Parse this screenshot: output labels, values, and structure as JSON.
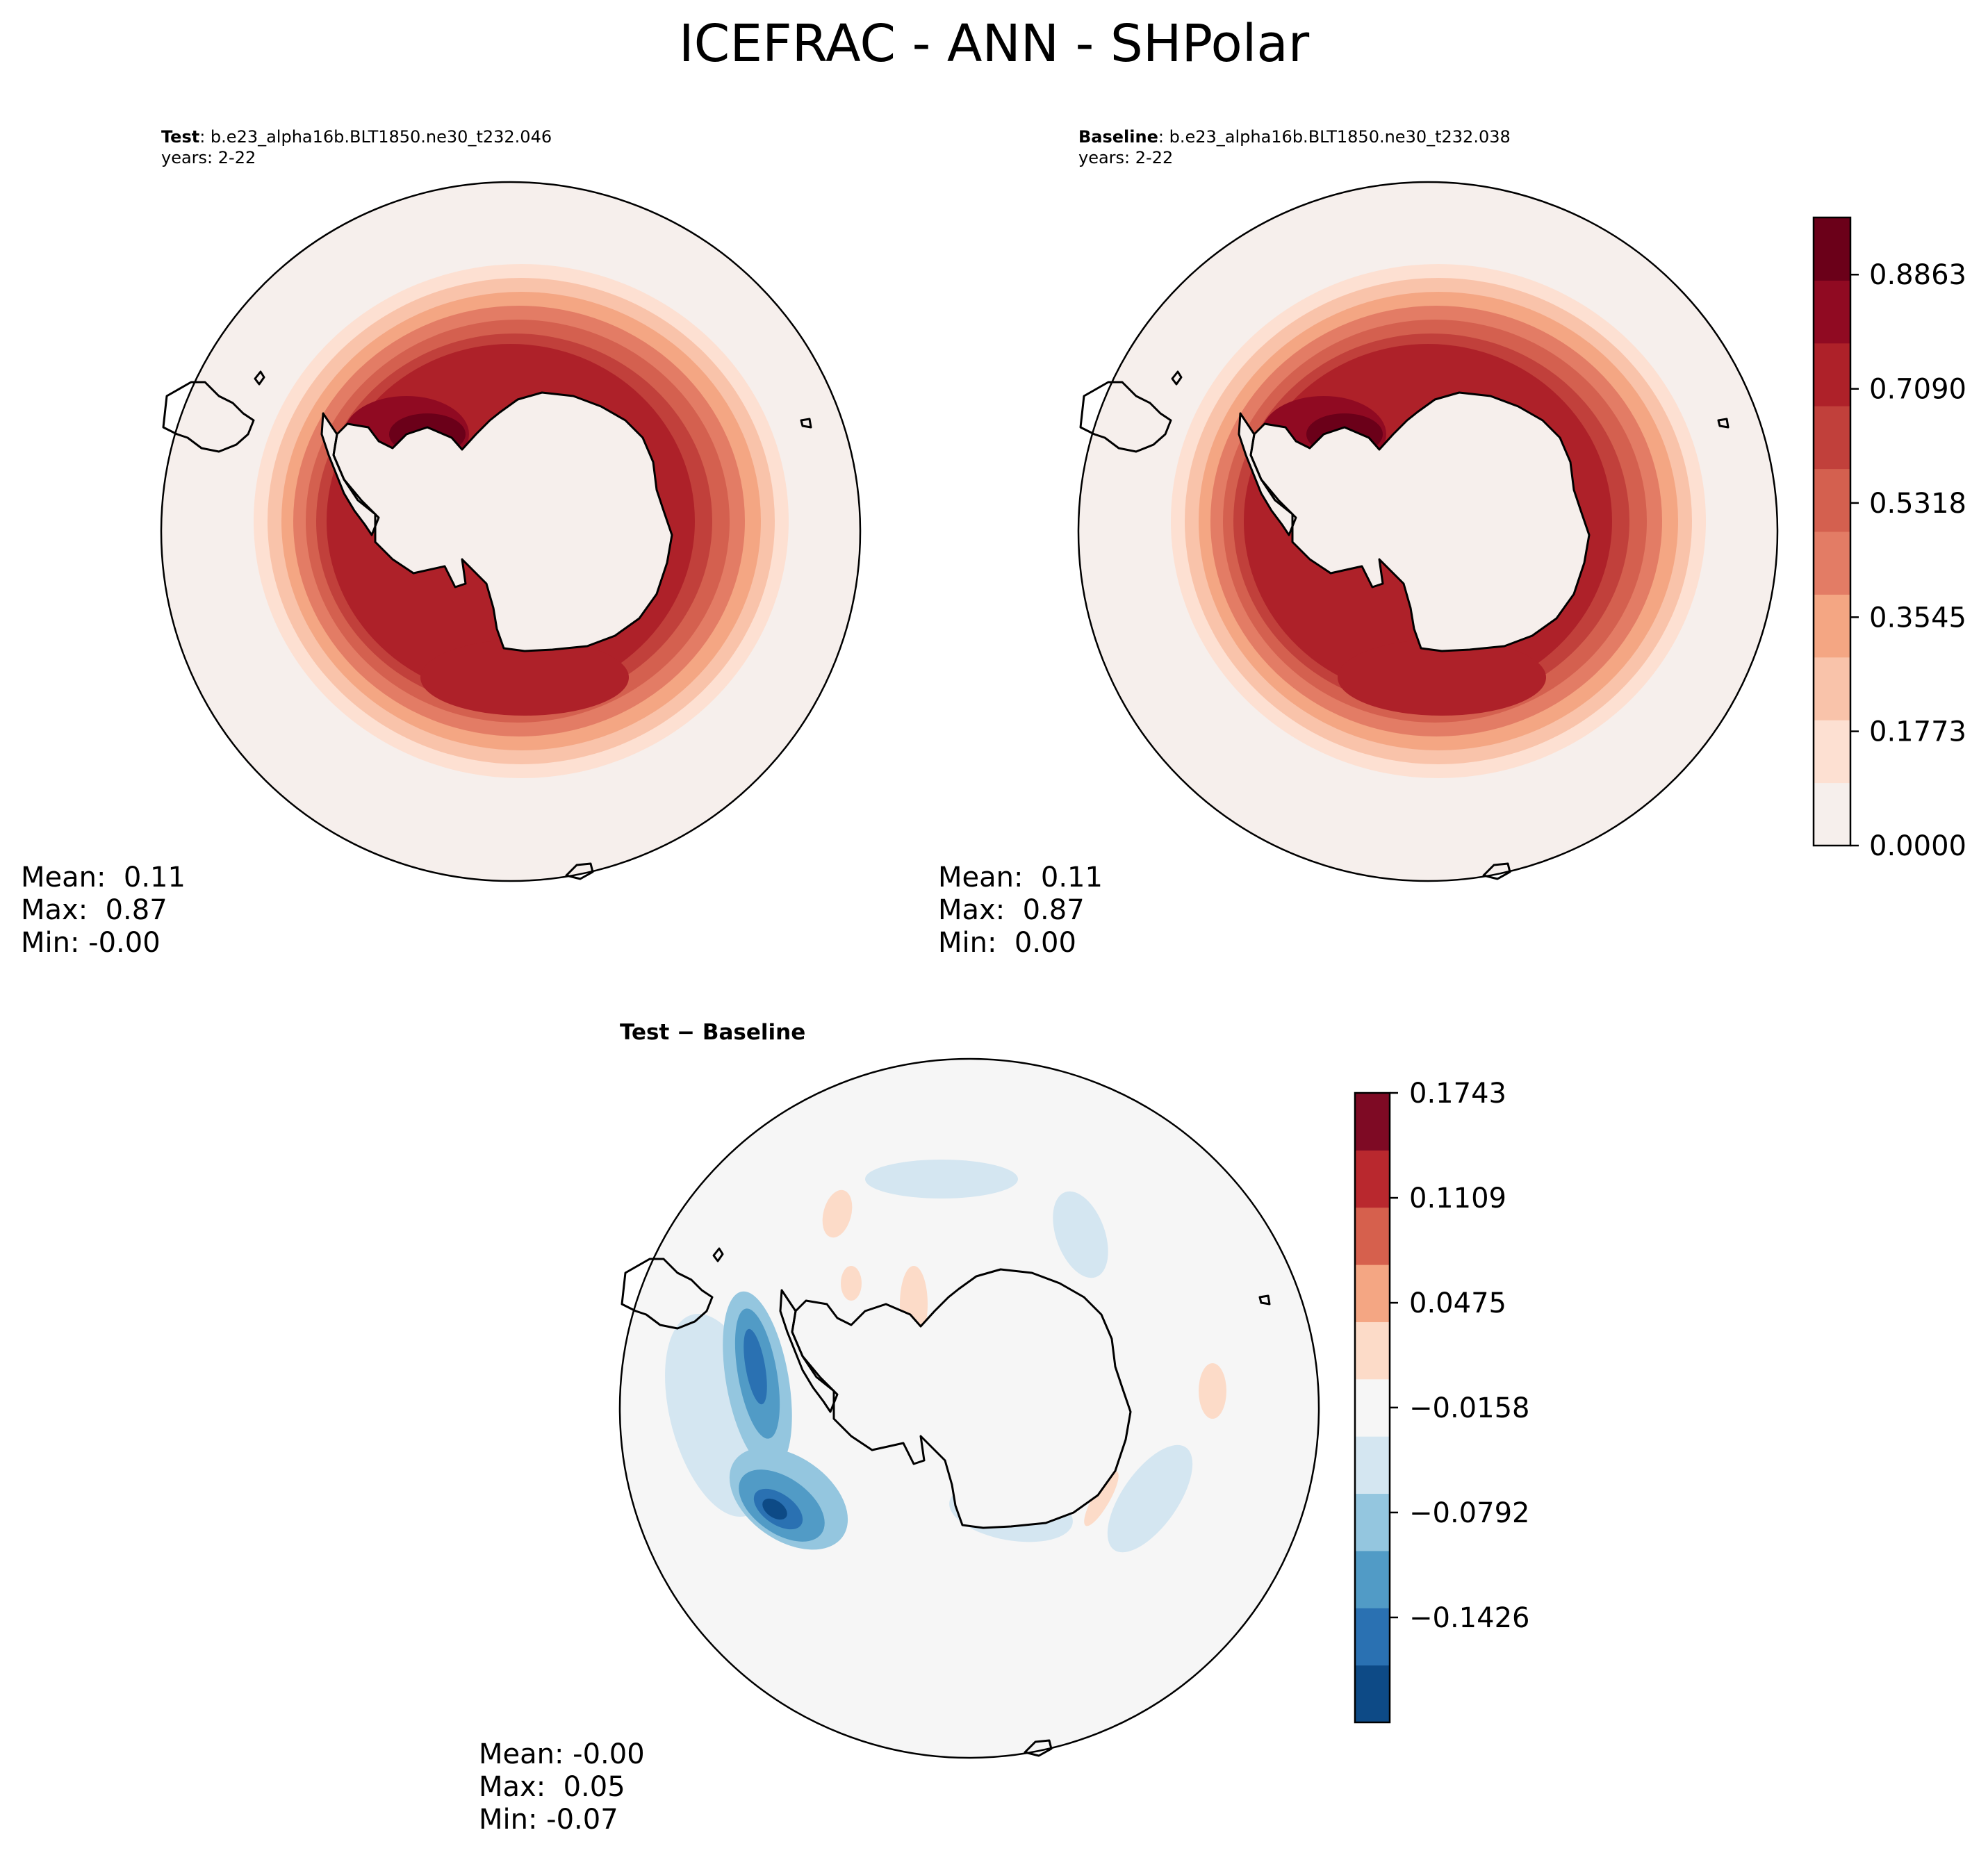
{
  "figure": {
    "suptitle": "ICEFRAC - ANN - SHPolar"
  },
  "panels": {
    "test": {
      "title_bold": "Test",
      "title_rest": ": b.e23_alpha16b.BLT1850.ne30_t232.046",
      "years": "years: 2-22",
      "stats": {
        "mean": "Mean:  0.11",
        "max": "Max:  0.87",
        "min": "Min: -0.00"
      }
    },
    "baseline": {
      "title_bold": "Baseline",
      "title_rest": ": b.e23_alpha16b.BLT1850.ne30_t232.038",
      "years": "years: 2-22",
      "stats": {
        "mean": "Mean:  0.11",
        "max": "Max:  0.87",
        "min": "Min:  0.00"
      }
    },
    "diff": {
      "title": "Test − Baseline",
      "stats": {
        "mean": "Mean: -0.00",
        "max": "Max:  0.05",
        "min": "Min: -0.07"
      }
    }
  },
  "colorbars": {
    "main": {
      "tick_labels": [
        "0.0000",
        "0.1773",
        "0.3545",
        "0.5318",
        "0.7090",
        "0.8863"
      ],
      "colors": [
        "#f6efec",
        "#fde0d2",
        "#f9c3aa",
        "#f4a683",
        "#e37c65",
        "#d4604f",
        "#c1403b",
        "#ae2129",
        "#900a22",
        "#6b0019"
      ]
    },
    "diff": {
      "tick_labels": [
        "−0.1426",
        "−0.0792",
        "−0.0158",
        "0.0475",
        "0.1109",
        "0.1743"
      ],
      "colors": [
        "#0d4a86",
        "#2a71b2",
        "#519bc6",
        "#94c6df",
        "#d4e6f1",
        "#f6f6f6",
        "#fcdbc8",
        "#f4a683",
        "#d6604d",
        "#b9282e",
        "#7e0a24"
      ]
    }
  },
  "chart_data": [
    {
      "type": "heatmap",
      "title": "Test: b.e23_alpha16b.BLT1850.ne30_t232.046",
      "subtitle": "years: 2-22",
      "projection": "south-polar-stereographic",
      "variable": "ICEFRAC",
      "levels": [
        0.0,
        0.0886,
        0.1773,
        0.2659,
        0.3545,
        0.4432,
        0.5318,
        0.6204,
        0.709,
        0.7977,
        0.8863,
        0.975
      ],
      "colorbar_ticks": [
        0.0,
        0.1773,
        0.3545,
        0.5318,
        0.709,
        0.8863
      ],
      "stats": {
        "mean": 0.11,
        "max": 0.87,
        "min": -0.0
      }
    },
    {
      "type": "heatmap",
      "title": "Baseline: b.e23_alpha16b.BLT1850.ne30_t232.038",
      "subtitle": "years: 2-22",
      "projection": "south-polar-stereographic",
      "variable": "ICEFRAC",
      "levels": [
        0.0,
        0.0886,
        0.1773,
        0.2659,
        0.3545,
        0.4432,
        0.5318,
        0.6204,
        0.709,
        0.7977,
        0.8863,
        0.975
      ],
      "colorbar_ticks": [
        0.0,
        0.1773,
        0.3545,
        0.5318,
        0.709,
        0.8863
      ],
      "stats": {
        "mean": 0.11,
        "max": 0.87,
        "min": 0.0
      }
    },
    {
      "type": "heatmap",
      "title": "Test − Baseline",
      "projection": "south-polar-stereographic",
      "variable": "ICEFRAC difference",
      "levels": [
        -0.1743,
        -0.1426,
        -0.1109,
        -0.0792,
        -0.0475,
        -0.0158,
        0.0158,
        0.0475,
        0.0792,
        0.1109,
        0.1426,
        0.1743
      ],
      "colorbar_ticks": [
        -0.1426,
        -0.0792,
        -0.0158,
        0.0475,
        0.1109,
        0.1743
      ],
      "stats": {
        "mean": -0.0,
        "max": 0.05,
        "min": -0.07
      }
    }
  ]
}
